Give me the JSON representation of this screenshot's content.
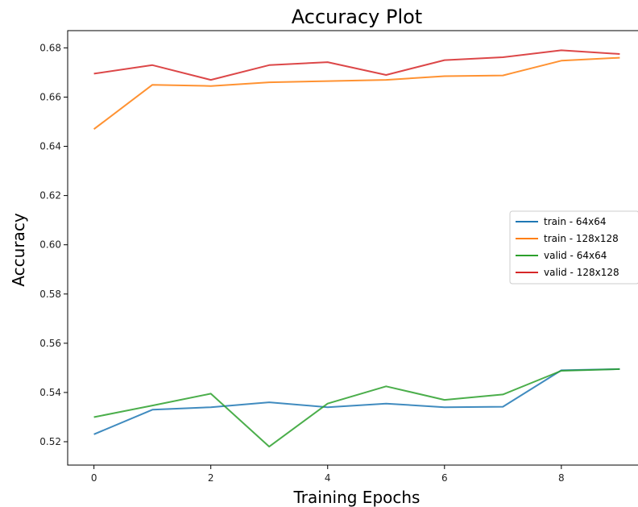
{
  "chart_data": {
    "type": "line",
    "title": "Accuracy Plot",
    "xlabel": "Training Epochs",
    "ylabel": "Accuracy",
    "x": [
      0,
      1,
      2,
      3,
      4,
      5,
      6,
      7,
      8,
      9
    ],
    "xlim": [
      -0.45,
      9.45
    ],
    "ylim": [
      0.5105,
      0.687
    ],
    "xticks": [
      0,
      2,
      4,
      6,
      8
    ],
    "xtick_labels": [
      "0",
      "2",
      "4",
      "6",
      "8"
    ],
    "yticks": [
      0.52,
      0.54,
      0.56,
      0.58,
      0.6,
      0.62,
      0.64,
      0.66,
      0.68
    ],
    "ytick_labels": [
      "0.52",
      "0.54",
      "0.56",
      "0.58",
      "0.60",
      "0.62",
      "0.64",
      "0.66",
      "0.68"
    ],
    "grid": false,
    "legend_position": "center-right",
    "series": [
      {
        "name": "train - 64x64",
        "color": "#1f77b4",
        "values": [
          0.523,
          0.533,
          0.534,
          0.536,
          0.534,
          0.5355,
          0.534,
          0.5342,
          0.549,
          0.5495
        ]
      },
      {
        "name": "train - 128x128",
        "color": "#ff7f0e",
        "values": [
          0.647,
          0.665,
          0.6645,
          0.666,
          0.6665,
          0.667,
          0.6685,
          0.6688,
          0.6748,
          0.676
        ]
      },
      {
        "name": "valid - 64x64",
        "color": "#2ca02c",
        "values": [
          0.53,
          0.5347,
          0.5395,
          0.518,
          0.5355,
          0.5425,
          0.537,
          0.5392,
          0.5488,
          0.5495
        ]
      },
      {
        "name": "valid - 128x128",
        "color": "#d62728",
        "values": [
          0.6695,
          0.673,
          0.667,
          0.673,
          0.6742,
          0.669,
          0.675,
          0.6762,
          0.679,
          0.6775
        ]
      }
    ]
  }
}
